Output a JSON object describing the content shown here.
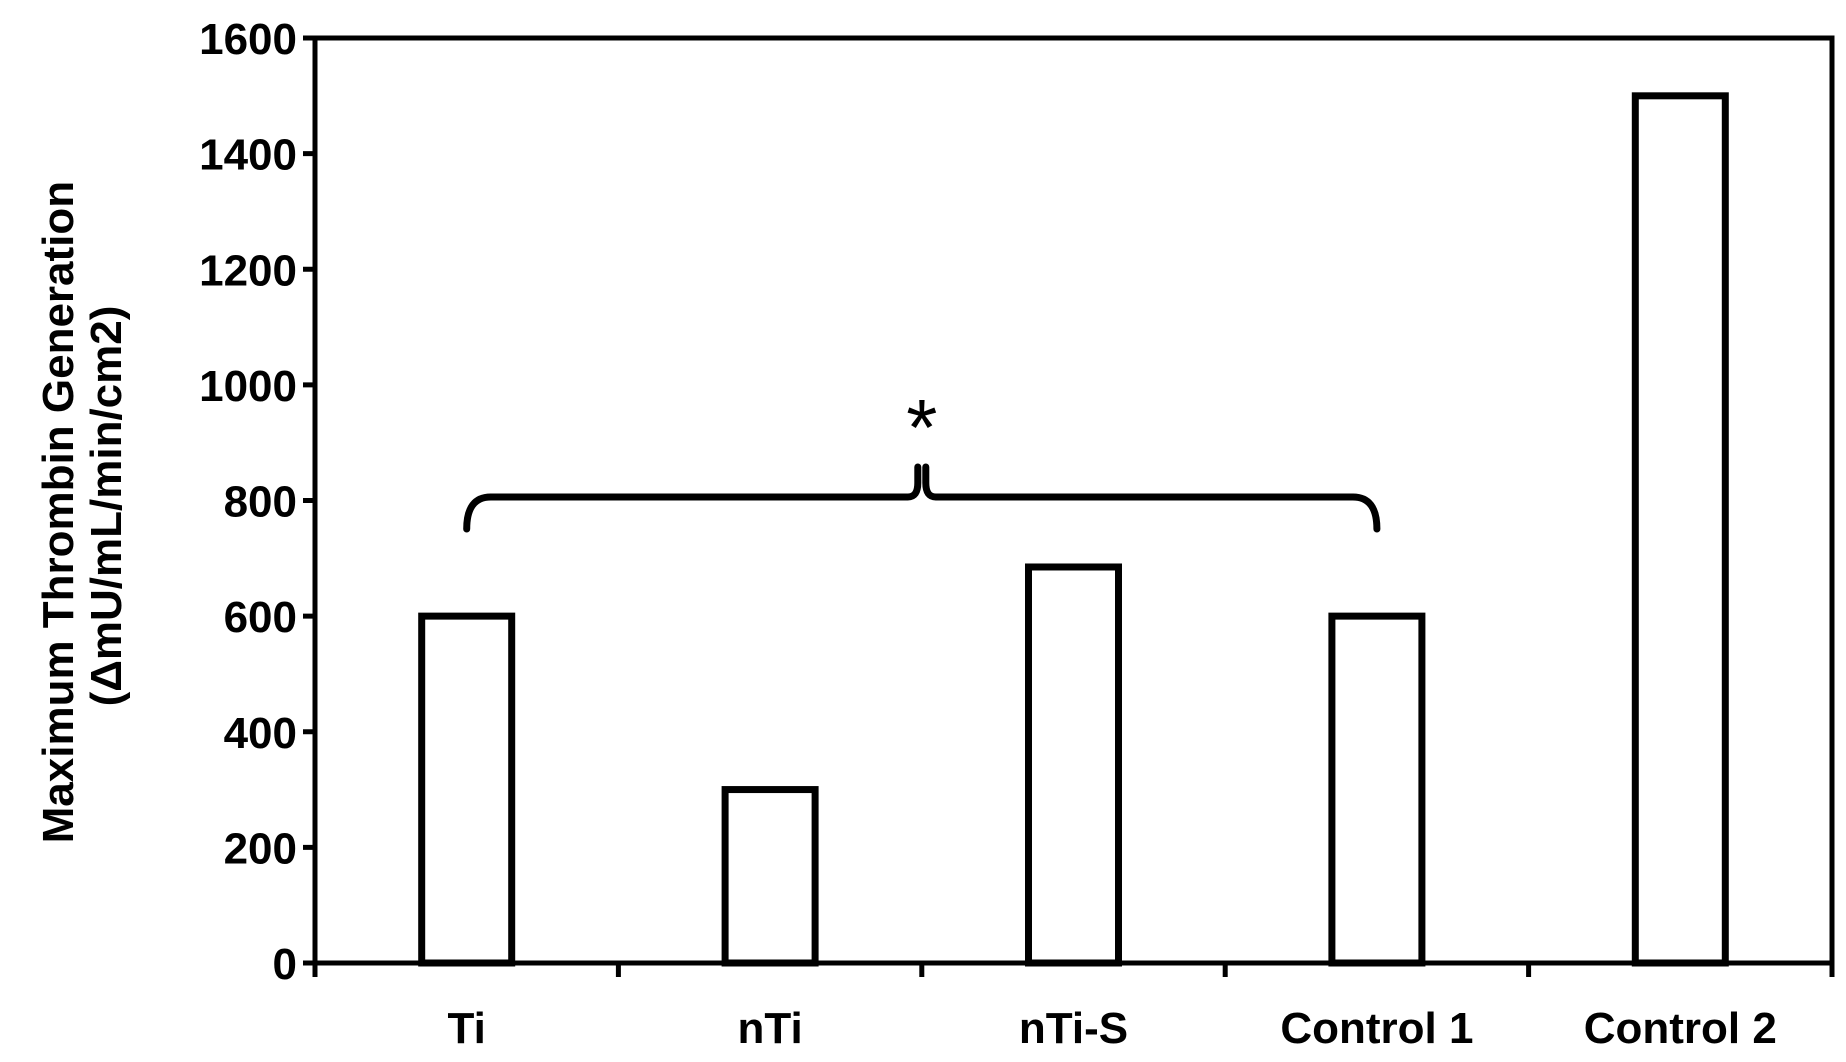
{
  "chart_data": {
    "type": "bar",
    "categories": [
      "Ti",
      "nTi",
      "nTi-S",
      "Control 1",
      "Control 2"
    ],
    "values": [
      600,
      300,
      685,
      600,
      1500
    ],
    "title": "",
    "xlabel": "",
    "ylabel_lines": [
      "Maximum Thrombin Generation",
      "(ΔmU/mL/min/cm2)"
    ],
    "ylim": [
      0,
      1600
    ],
    "yticks": [
      0,
      200,
      400,
      600,
      800,
      1000,
      1200,
      1400,
      1600
    ],
    "grid": false,
    "legend": "none",
    "bar_fill": "#ffffff",
    "bar_stroke": "#000000",
    "annotation": {
      "text": "*",
      "spans": [
        "Ti",
        "Control 1"
      ]
    }
  }
}
